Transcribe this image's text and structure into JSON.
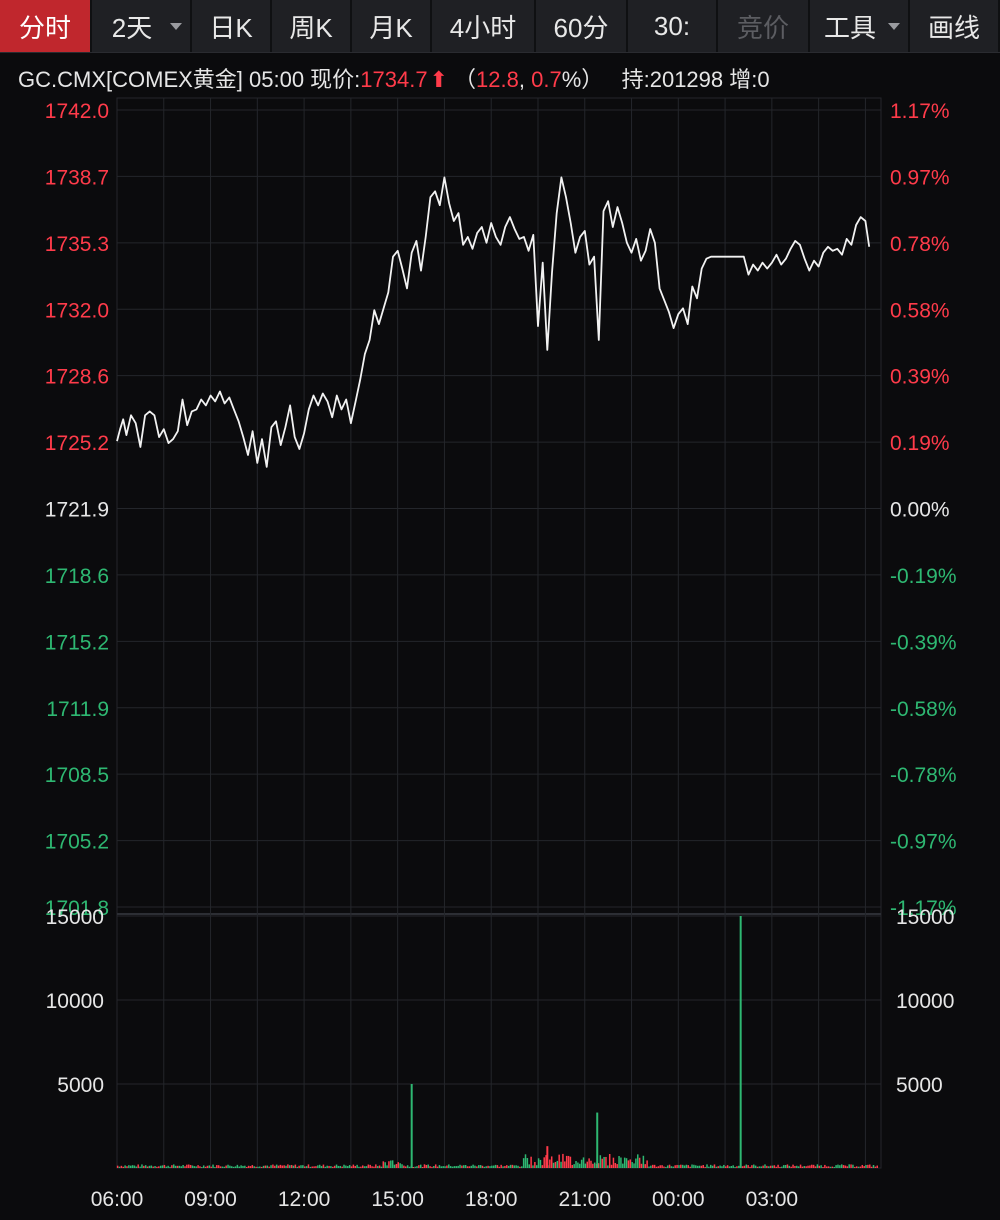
{
  "toolbar": {
    "tabs": [
      {
        "label": "分时",
        "width": 92,
        "state": "active",
        "caret": false
      },
      {
        "label": "2天",
        "width": 100,
        "state": "normal",
        "caret": true
      },
      {
        "label": "日K",
        "width": 80,
        "state": "normal",
        "caret": false
      },
      {
        "label": "周K",
        "width": 80,
        "state": "normal",
        "caret": false
      },
      {
        "label": "月K",
        "width": 80,
        "state": "normal",
        "caret": false
      },
      {
        "label": "4小时",
        "width": 104,
        "state": "normal",
        "caret": false
      },
      {
        "label": "60分",
        "width": 92,
        "state": "normal",
        "caret": false
      },
      {
        "label": "30:",
        "width": 90,
        "state": "normal",
        "caret": false
      },
      {
        "label": "竞价",
        "width": 92,
        "state": "disabled",
        "caret": false
      },
      {
        "label": "工具",
        "width": 100,
        "state": "normal",
        "caret": true
      },
      {
        "label": "画线",
        "width": 90,
        "state": "normal",
        "caret": false
      }
    ]
  },
  "quote": {
    "symbol_text": "GC.CMX[COMEX黄金] 05:00 现价:",
    "price": "1734.7",
    "change_open": "（",
    "change": "12.8",
    "sep": ", ",
    "change_pct": "0.7",
    "pct_close": "%）",
    "hold_text": "持:201298 增:0"
  },
  "colors": {
    "up": "#ff3b4a",
    "down": "#2eb872",
    "neutral": "#e6e6e6",
    "grid": "#24262b",
    "line": "#f2f2f2"
  },
  "chart_data": {
    "type": "line",
    "price_ylim": [
      1701.8,
      1742.0
    ],
    "prev_close": 1721.9,
    "price_ticks_left": [
      "1742.0",
      "1738.7",
      "1735.3",
      "1732.0",
      "1728.6",
      "1725.2",
      "1721.9",
      "1718.6",
      "1715.2",
      "1711.9",
      "1708.5",
      "1705.2",
      "1701.8"
    ],
    "price_ticks_right": [
      "1.17%",
      "0.97%",
      "0.78%",
      "0.58%",
      "0.39%",
      "0.19%",
      "0.00%",
      "-0.19%",
      "-0.39%",
      "-0.58%",
      "-0.78%",
      "-0.97%",
      "-1.17%"
    ],
    "x_ticks": [
      "06:00",
      "09:00",
      "12:00",
      "15:00",
      "18:00",
      "21:00",
      "00:00",
      "03:00"
    ],
    "series": [
      {
        "values": [
          [
            6.0,
            1725.3
          ],
          [
            6.1,
            1725.9
          ],
          [
            6.2,
            1726.4
          ],
          [
            6.3,
            1725.6
          ],
          [
            6.45,
            1726.6
          ],
          [
            6.6,
            1726.2
          ],
          [
            6.75,
            1725.0
          ],
          [
            6.9,
            1726.6
          ],
          [
            7.05,
            1726.8
          ],
          [
            7.2,
            1726.6
          ],
          [
            7.35,
            1725.5
          ],
          [
            7.5,
            1725.9
          ],
          [
            7.65,
            1725.2
          ],
          [
            7.8,
            1725.4
          ],
          [
            7.95,
            1725.8
          ],
          [
            8.1,
            1727.4
          ],
          [
            8.25,
            1726.1
          ],
          [
            8.4,
            1726.8
          ],
          [
            8.55,
            1726.9
          ],
          [
            8.7,
            1727.4
          ],
          [
            8.85,
            1727.1
          ],
          [
            9.0,
            1727.6
          ],
          [
            9.15,
            1727.3
          ],
          [
            9.3,
            1727.8
          ],
          [
            9.45,
            1727.2
          ],
          [
            9.6,
            1727.5
          ],
          [
            9.75,
            1726.9
          ],
          [
            9.9,
            1726.3
          ],
          [
            10.05,
            1725.5
          ],
          [
            10.2,
            1724.6
          ],
          [
            10.35,
            1725.8
          ],
          [
            10.5,
            1724.2
          ],
          [
            10.65,
            1725.4
          ],
          [
            10.8,
            1724.0
          ],
          [
            10.95,
            1726.0
          ],
          [
            11.1,
            1726.3
          ],
          [
            11.25,
            1725.1
          ],
          [
            11.4,
            1726.0
          ],
          [
            11.55,
            1727.1
          ],
          [
            11.7,
            1725.5
          ],
          [
            11.85,
            1724.9
          ],
          [
            12.0,
            1725.7
          ],
          [
            12.15,
            1726.9
          ],
          [
            12.3,
            1727.6
          ],
          [
            12.45,
            1727.1
          ],
          [
            12.6,
            1727.7
          ],
          [
            12.75,
            1727.3
          ],
          [
            12.9,
            1726.5
          ],
          [
            13.05,
            1727.6
          ],
          [
            13.2,
            1726.9
          ],
          [
            13.35,
            1727.4
          ],
          [
            13.5,
            1726.2
          ],
          [
            13.65,
            1727.3
          ],
          [
            13.8,
            1728.4
          ],
          [
            13.95,
            1729.7
          ],
          [
            14.1,
            1730.4
          ],
          [
            14.25,
            1731.9
          ],
          [
            14.4,
            1731.2
          ],
          [
            14.55,
            1732.0
          ],
          [
            14.7,
            1732.8
          ],
          [
            14.85,
            1734.6
          ],
          [
            15.0,
            1734.9
          ],
          [
            15.15,
            1734.0
          ],
          [
            15.3,
            1733.0
          ],
          [
            15.45,
            1734.8
          ],
          [
            15.6,
            1735.4
          ],
          [
            15.75,
            1733.9
          ],
          [
            15.9,
            1735.6
          ],
          [
            16.05,
            1737.6
          ],
          [
            16.2,
            1737.9
          ],
          [
            16.35,
            1737.2
          ],
          [
            16.5,
            1738.6
          ],
          [
            16.65,
            1737.3
          ],
          [
            16.8,
            1736.4
          ],
          [
            16.95,
            1736.8
          ],
          [
            17.1,
            1735.2
          ],
          [
            17.25,
            1735.6
          ],
          [
            17.4,
            1735.0
          ],
          [
            17.55,
            1735.8
          ],
          [
            17.7,
            1736.1
          ],
          [
            17.85,
            1735.3
          ],
          [
            18.0,
            1736.3
          ],
          [
            18.15,
            1735.6
          ],
          [
            18.3,
            1735.2
          ],
          [
            18.45,
            1736.1
          ],
          [
            18.6,
            1736.6
          ],
          [
            18.75,
            1736.0
          ],
          [
            18.9,
            1735.5
          ],
          [
            19.05,
            1735.6
          ],
          [
            19.2,
            1734.9
          ],
          [
            19.35,
            1735.7
          ],
          [
            19.5,
            1731.1
          ],
          [
            19.65,
            1734.3
          ],
          [
            19.8,
            1729.9
          ],
          [
            19.95,
            1733.8
          ],
          [
            20.1,
            1736.8
          ],
          [
            20.25,
            1738.6
          ],
          [
            20.4,
            1737.6
          ],
          [
            20.55,
            1736.3
          ],
          [
            20.7,
            1734.8
          ],
          [
            20.85,
            1735.6
          ],
          [
            21.0,
            1735.9
          ],
          [
            21.15,
            1734.2
          ],
          [
            21.3,
            1734.6
          ],
          [
            21.45,
            1730.4
          ],
          [
            21.6,
            1736.9
          ],
          [
            21.75,
            1737.4
          ],
          [
            21.9,
            1736.1
          ],
          [
            22.05,
            1737.1
          ],
          [
            22.2,
            1736.3
          ],
          [
            22.35,
            1735.3
          ],
          [
            22.5,
            1734.8
          ],
          [
            22.65,
            1735.5
          ],
          [
            22.8,
            1734.4
          ],
          [
            22.95,
            1734.9
          ],
          [
            23.1,
            1736.0
          ],
          [
            23.25,
            1735.3
          ],
          [
            23.4,
            1733.0
          ],
          [
            23.55,
            1732.4
          ],
          [
            23.7,
            1731.8
          ],
          [
            23.85,
            1731.0
          ],
          [
            24.0,
            1731.7
          ],
          [
            24.15,
            1732.0
          ],
          [
            24.3,
            1731.2
          ],
          [
            24.45,
            1733.1
          ],
          [
            24.6,
            1732.5
          ],
          [
            24.75,
            1734.0
          ],
          [
            24.9,
            1734.5
          ],
          [
            25.05,
            1734.6
          ],
          [
            25.2,
            1734.6
          ],
          [
            25.35,
            1734.6
          ],
          [
            25.5,
            1734.6
          ],
          [
            25.65,
            1734.6
          ],
          [
            25.8,
            1734.6
          ],
          [
            25.95,
            1734.6
          ],
          [
            26.1,
            1734.6
          ],
          [
            26.25,
            1733.7
          ],
          [
            26.4,
            1734.2
          ],
          [
            26.55,
            1733.9
          ],
          [
            26.7,
            1734.3
          ],
          [
            26.85,
            1734.0
          ],
          [
            27.0,
            1734.3
          ],
          [
            27.15,
            1734.7
          ],
          [
            27.3,
            1734.2
          ],
          [
            27.45,
            1734.5
          ],
          [
            27.6,
            1735.0
          ],
          [
            27.75,
            1735.4
          ],
          [
            27.9,
            1735.2
          ],
          [
            28.05,
            1734.5
          ],
          [
            28.2,
            1733.9
          ],
          [
            28.35,
            1734.4
          ],
          [
            28.5,
            1734.1
          ],
          [
            28.65,
            1734.8
          ],
          [
            28.8,
            1735.1
          ],
          [
            28.95,
            1734.9
          ],
          [
            29.1,
            1735.0
          ],
          [
            29.25,
            1734.7
          ],
          [
            29.4,
            1735.5
          ],
          [
            29.55,
            1735.2
          ],
          [
            29.7,
            1736.2
          ],
          [
            29.85,
            1736.6
          ],
          [
            30.0,
            1736.4
          ],
          [
            30.12,
            1735.1
          ]
        ]
      }
    ],
    "volume_ylim": [
      0,
      15000
    ],
    "volume_ticks": [
      "15000",
      "10000",
      "5000"
    ],
    "volume_spikes": [
      [
        15.45,
        5000
      ],
      [
        19.8,
        1300
      ],
      [
        21.4,
        3300
      ],
      [
        26.0,
        15000
      ]
    ]
  }
}
